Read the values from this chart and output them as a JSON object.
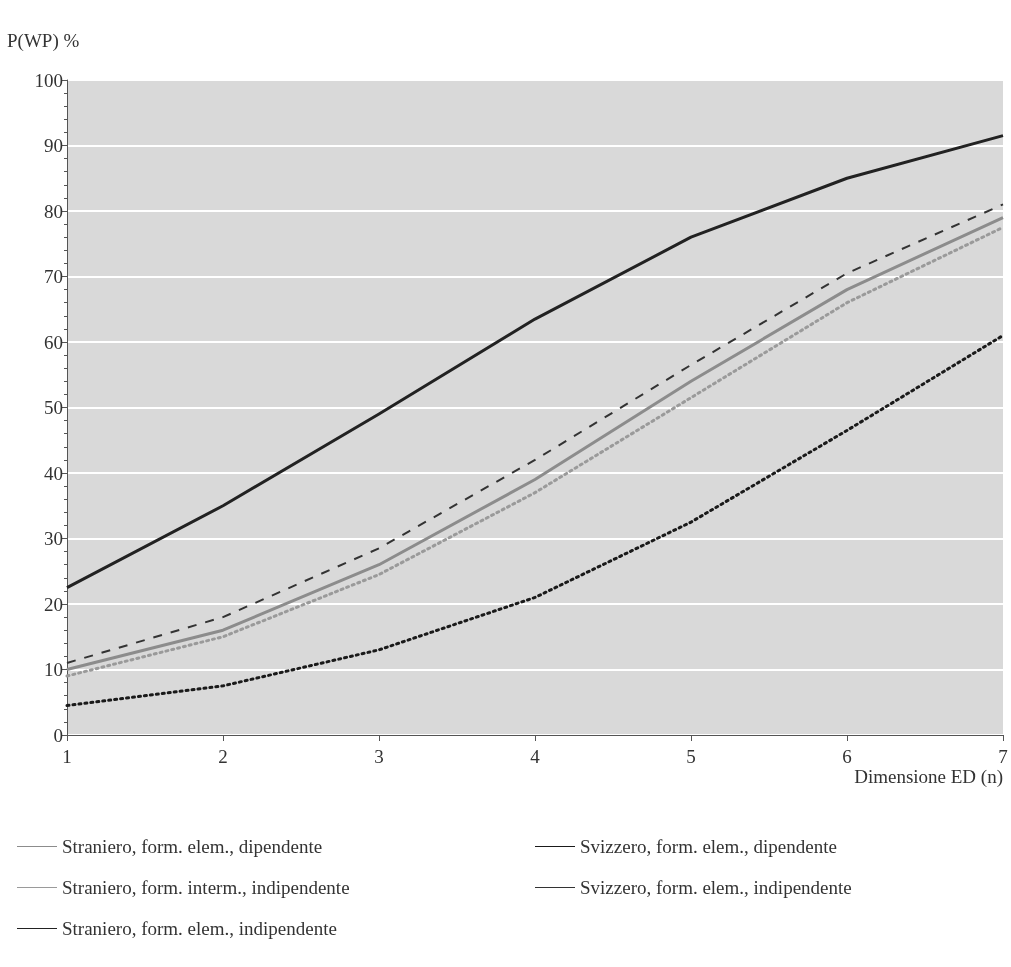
{
  "chart_data": {
    "type": "line",
    "ylabel": "P(WP) %",
    "xlabel": "Dimensione ED (n)",
    "x": [
      1,
      2,
      3,
      4,
      5,
      6,
      7
    ],
    "xlim": [
      1,
      7
    ],
    "xticks": [
      1,
      2,
      3,
      4,
      5,
      6,
      7
    ],
    "ylim": [
      0,
      100
    ],
    "yticks": [
      0,
      10,
      20,
      30,
      40,
      50,
      60,
      70,
      80,
      90,
      100
    ],
    "grid": "y",
    "legend": "bottom",
    "marker": "none",
    "series": [
      {
        "name": "Straniero, form. elem., dipendente",
        "color": "#8c8c8c",
        "line_style": "solid",
        "values": [
          10,
          16,
          26,
          39,
          54,
          68,
          79
        ]
      },
      {
        "name": "Svizzero, form. elem., dipendente",
        "color": "#1a1a1a",
        "line_style": "dotted",
        "values": [
          4.5,
          7.5,
          13,
          21,
          32.5,
          46.5,
          61
        ]
      },
      {
        "name": "Straniero, form. interm., indipendente",
        "color": "#9a9a9a",
        "line_style": "dotted",
        "values": [
          9,
          15,
          24.5,
          37,
          51.5,
          66,
          77.5
        ]
      },
      {
        "name": "Svizzero, form. elem., indipendente",
        "color": "#333333",
        "line_style": "dashed",
        "values": [
          11,
          18,
          28.5,
          42,
          56.5,
          70.5,
          81
        ]
      },
      {
        "name": "Straniero, form. elem., indipendente",
        "color": "#222222",
        "line_style": "solid",
        "values": [
          22.5,
          35,
          49,
          63.5,
          76,
          85,
          91.5
        ]
      }
    ]
  }
}
